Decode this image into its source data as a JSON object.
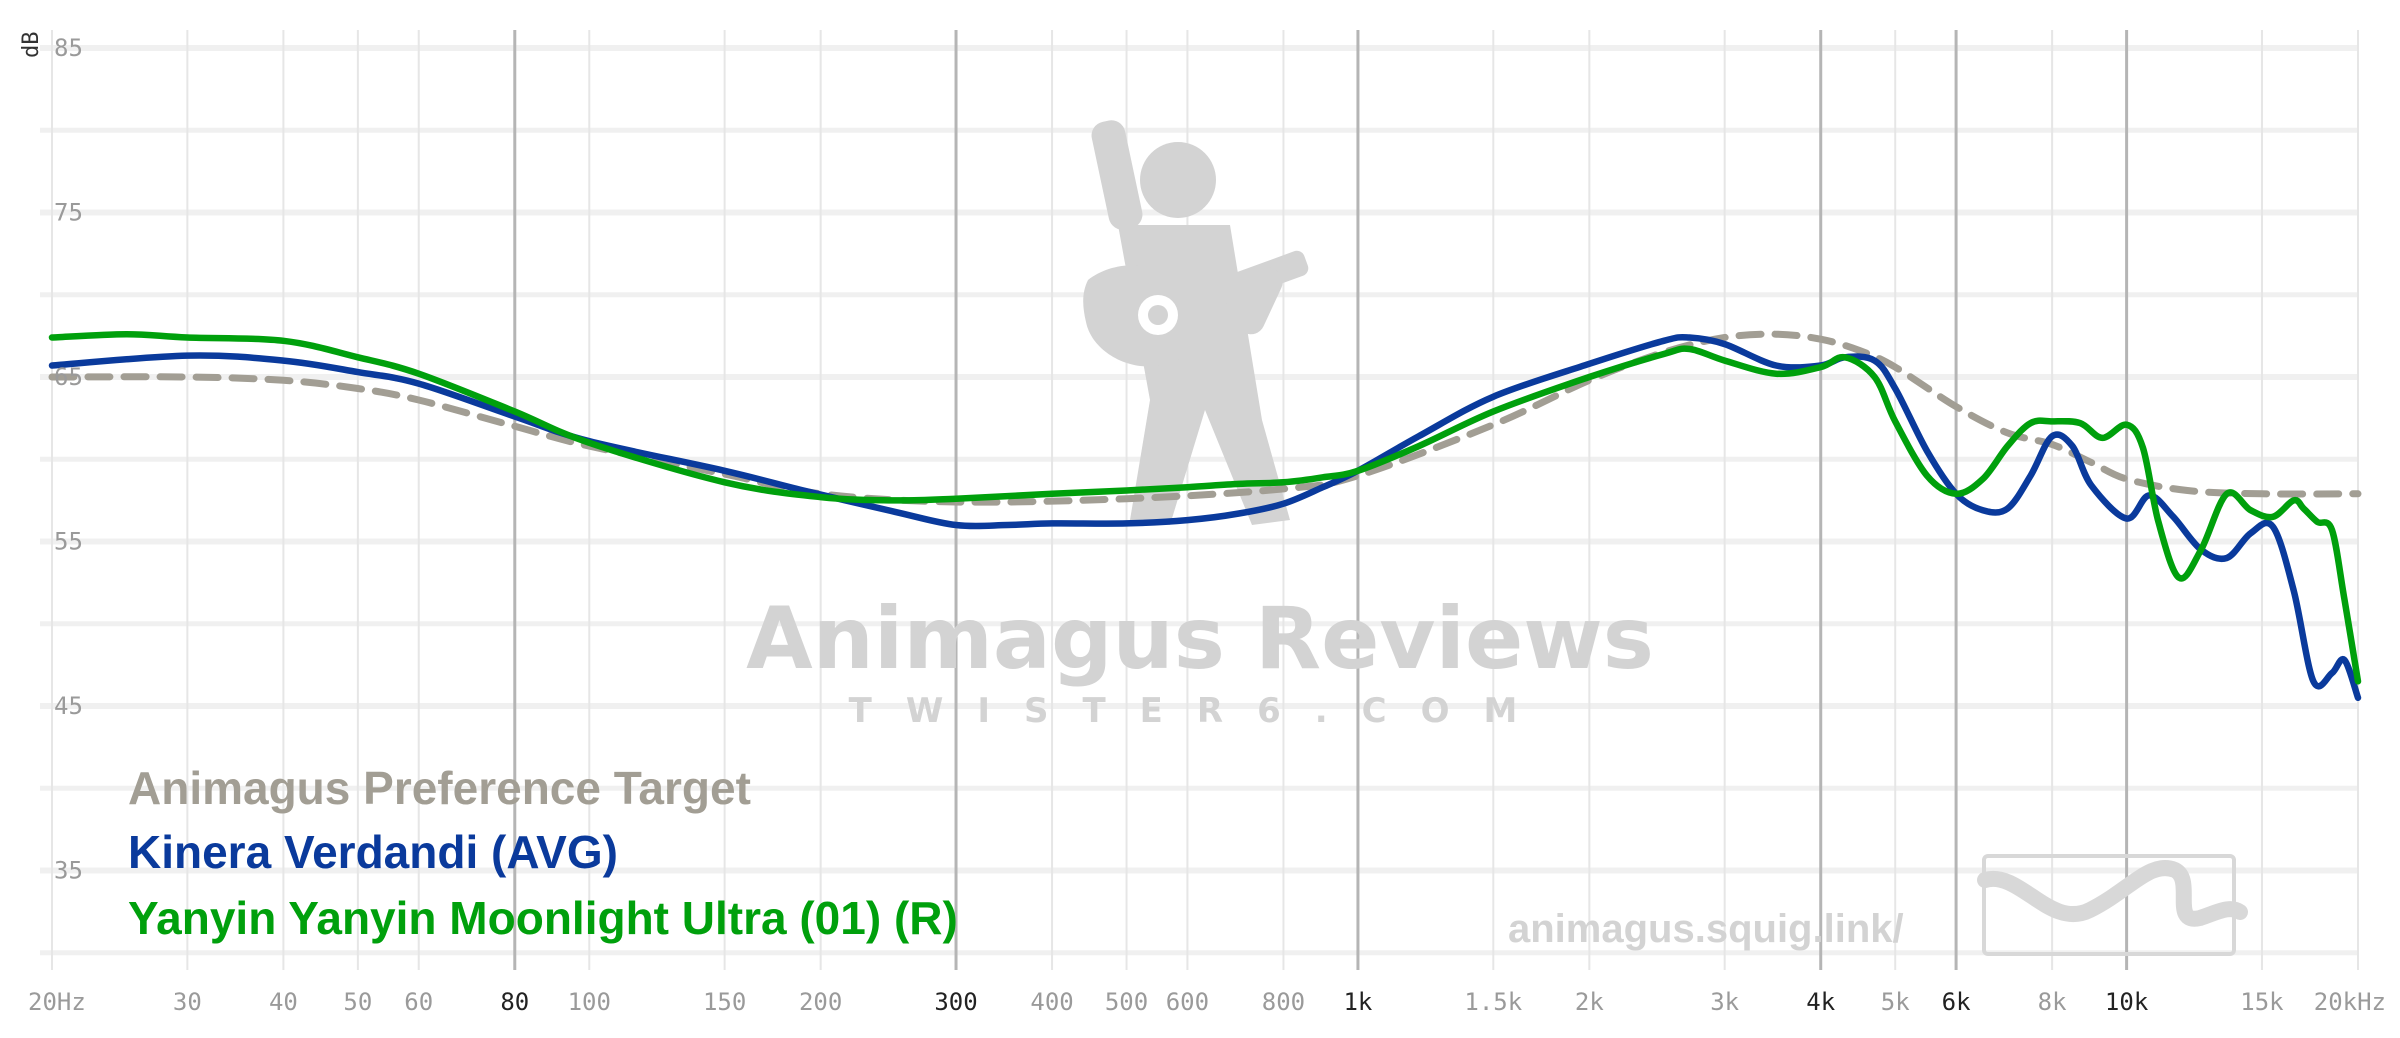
{
  "chart_data": {
    "type": "line",
    "title": "",
    "xlabel": "",
    "ylabel": "dB",
    "x_scale": "log",
    "xlim": [
      20,
      20000
    ],
    "ylim": [
      30,
      85
    ],
    "grid": true,
    "legend_position": "bottom-left",
    "y_ticks": [
      85,
      75,
      65,
      55,
      45,
      35
    ],
    "x_ticks": [
      {
        "value": 20,
        "label": "20Hz",
        "major": false
      },
      {
        "value": 30,
        "label": "30",
        "major": false
      },
      {
        "value": 40,
        "label": "40",
        "major": false
      },
      {
        "value": 50,
        "label": "50",
        "major": false
      },
      {
        "value": 60,
        "label": "60",
        "major": false
      },
      {
        "value": 80,
        "label": "80",
        "major": true
      },
      {
        "value": 100,
        "label": "100",
        "major": false
      },
      {
        "value": 150,
        "label": "150",
        "major": false
      },
      {
        "value": 200,
        "label": "200",
        "major": false
      },
      {
        "value": 300,
        "label": "300",
        "major": true
      },
      {
        "value": 400,
        "label": "400",
        "major": false
      },
      {
        "value": 500,
        "label": "500",
        "major": false
      },
      {
        "value": 600,
        "label": "600",
        "major": false
      },
      {
        "value": 800,
        "label": "800",
        "major": false
      },
      {
        "value": 1000,
        "label": "1k",
        "major": true
      },
      {
        "value": 1500,
        "label": "1.5k",
        "major": false
      },
      {
        "value": 2000,
        "label": "2k",
        "major": false
      },
      {
        "value": 3000,
        "label": "3k",
        "major": false
      },
      {
        "value": 4000,
        "label": "4k",
        "major": true
      },
      {
        "value": 5000,
        "label": "5k",
        "major": false
      },
      {
        "value": 6000,
        "label": "6k",
        "major": true
      },
      {
        "value": 8000,
        "label": "8k",
        "major": false
      },
      {
        "value": 10000,
        "label": "10k",
        "major": true
      },
      {
        "value": 15000,
        "label": "15k",
        "major": false
      },
      {
        "value": 20000,
        "label": "20kHz",
        "major": false
      }
    ],
    "series": [
      {
        "name": "Animagus Preference Target",
        "color": "#a29e94",
        "dashed": true,
        "x": [
          20,
          30,
          40,
          50,
          60,
          80,
          100,
          150,
          200,
          300,
          500,
          800,
          1000,
          1500,
          2000,
          2500,
          3000,
          3500,
          4000,
          4500,
          5000,
          6000,
          7000,
          8000,
          9000,
          10000,
          12000,
          15000,
          20000
        ],
        "y": [
          65.0,
          65.0,
          64.8,
          64.3,
          63.6,
          62.0,
          60.8,
          59.1,
          57.9,
          57.4,
          57.6,
          58.2,
          59.0,
          62.1,
          64.8,
          66.5,
          67.4,
          67.6,
          67.3,
          66.6,
          65.6,
          63.2,
          61.6,
          60.9,
          59.8,
          58.8,
          58.1,
          57.9,
          57.9
        ]
      },
      {
        "name": "Kinera Verdandi (AVG)",
        "color": "#0a3a9c",
        "dashed": false,
        "x": [
          20,
          30,
          40,
          50,
          60,
          80,
          100,
          150,
          190,
          250,
          300,
          350,
          400,
          500,
          600,
          700,
          800,
          900,
          1000,
          1200,
          1500,
          2000,
          2500,
          2700,
          3000,
          3500,
          4000,
          4300,
          4700,
          5000,
          5500,
          6000,
          6500,
          7000,
          7500,
          8000,
          8500,
          9000,
          10000,
          10700,
          11500,
          12500,
          13500,
          14500,
          15500,
          16500,
          17500,
          18500,
          19200,
          20000
        ],
        "y": [
          65.7,
          66.3,
          66.0,
          65.3,
          64.6,
          62.6,
          61.1,
          59.3,
          58.1,
          56.8,
          56.0,
          56.0,
          56.1,
          56.1,
          56.3,
          56.7,
          57.3,
          58.3,
          59.3,
          61.4,
          63.8,
          65.8,
          67.2,
          67.4,
          67.0,
          65.7,
          65.7,
          66.2,
          66.0,
          64.3,
          60.5,
          57.9,
          56.9,
          57.0,
          59.0,
          61.4,
          60.8,
          58.4,
          56.4,
          57.8,
          56.5,
          54.5,
          54.0,
          55.5,
          55.9,
          52.0,
          46.5,
          47.0,
          47.8,
          45.5
        ]
      },
      {
        "name": "Yanyin Yanyin Moonlight Ultra (01) (R)",
        "color": "#00a00c",
        "dashed": false,
        "x": [
          20,
          25,
          30,
          40,
          50,
          60,
          80,
          100,
          150,
          200,
          250,
          300,
          400,
          500,
          600,
          700,
          800,
          900,
          1000,
          1200,
          1500,
          2000,
          2500,
          2700,
          3000,
          3500,
          4000,
          4300,
          4700,
          5000,
          5500,
          6000,
          6500,
          7000,
          7500,
          8000,
          8700,
          9300,
          10000,
          10500,
          11000,
          11700,
          12500,
          13500,
          14500,
          15500,
          16500,
          17000,
          17700,
          18500,
          19200,
          20000
        ],
        "y": [
          67.4,
          67.6,
          67.4,
          67.2,
          66.2,
          65.2,
          62.9,
          61.0,
          58.6,
          57.7,
          57.5,
          57.6,
          57.9,
          58.1,
          58.3,
          58.5,
          58.6,
          58.9,
          59.3,
          60.8,
          62.9,
          65.0,
          66.4,
          66.7,
          66.0,
          65.2,
          65.6,
          66.2,
          65.0,
          62.3,
          59.0,
          57.9,
          58.8,
          60.8,
          62.2,
          62.3,
          62.2,
          61.3,
          62.1,
          60.7,
          56.2,
          52.8,
          54.5,
          57.9,
          56.9,
          56.5,
          57.5,
          57.0,
          56.2,
          55.7,
          51.5,
          46.5
        ]
      }
    ]
  },
  "legend": {
    "items": [
      {
        "label": "Animagus Preference Target",
        "color": "#a29e94"
      },
      {
        "label": "Kinera Verdandi (AVG)",
        "color": "#0a3a9c"
      },
      {
        "label": "Yanyin Yanyin Moonlight Ultra (01) (R)",
        "color": "#00a00c"
      }
    ]
  },
  "watermark": {
    "title": "Animagus Reviews",
    "subtitle": "TWISTER6.COM",
    "url": "animagus.squig.link/",
    "icon": "guitar-player-icon",
    "logo": "squiggle-logo-icon"
  }
}
